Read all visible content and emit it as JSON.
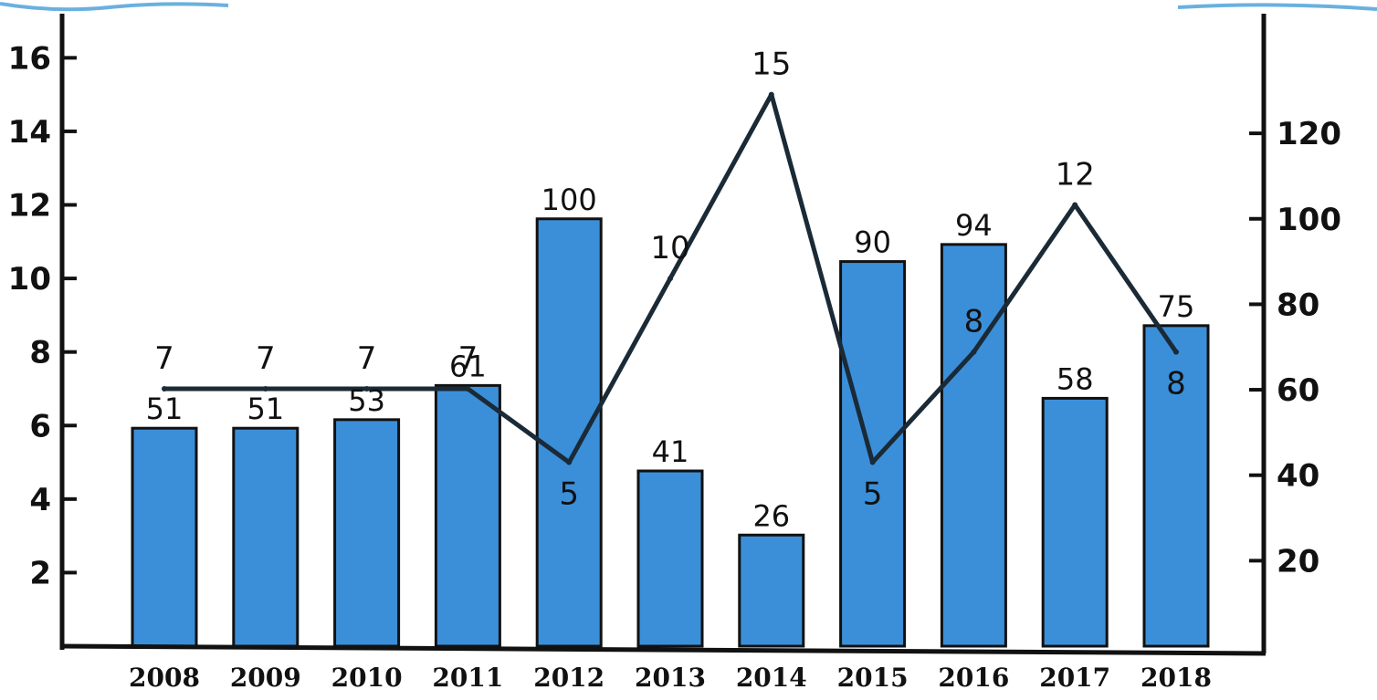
{
  "chart_data": {
    "type": "bar+line",
    "categories": [
      "2008",
      "2009",
      "2010",
      "2011",
      "2012",
      "2013",
      "2014",
      "2015",
      "2016",
      "2017",
      "2018"
    ],
    "bar_series": {
      "axis": "right",
      "color": "#3b8fd9",
      "values": [
        51,
        51,
        53,
        61,
        100,
        41,
        26,
        90,
        94,
        58,
        75
      ],
      "labels": [
        "51",
        "51",
        "53",
        "61",
        "100",
        "41",
        "26",
        "90",
        "94",
        "58",
        "75"
      ]
    },
    "line_series": {
      "axis": "left",
      "color": "#1a2a36",
      "values": [
        7,
        7,
        7,
        7,
        5,
        10,
        15,
        5,
        8,
        12,
        8
      ],
      "labels": [
        "7",
        "7",
        "7",
        "7",
        "5",
        "10",
        "15",
        "5",
        "8",
        "12",
        "8"
      ]
    },
    "left_axis": {
      "ticks": [
        2,
        4,
        6,
        8,
        10,
        12,
        14,
        16
      ],
      "tick_labels": [
        "2",
        "4",
        "6",
        "8",
        "10",
        "12",
        "14",
        "16"
      ],
      "range": [
        0,
        17.2
      ]
    },
    "right_axis": {
      "ticks": [
        20,
        40,
        60,
        80,
        100,
        120
      ],
      "tick_labels": [
        "20",
        "40",
        "60",
        "80",
        "100",
        "120"
      ],
      "range": [
        0,
        148
      ]
    },
    "title": "",
    "xlabel": "",
    "ylabel": "",
    "grid": false,
    "legend": "none"
  }
}
